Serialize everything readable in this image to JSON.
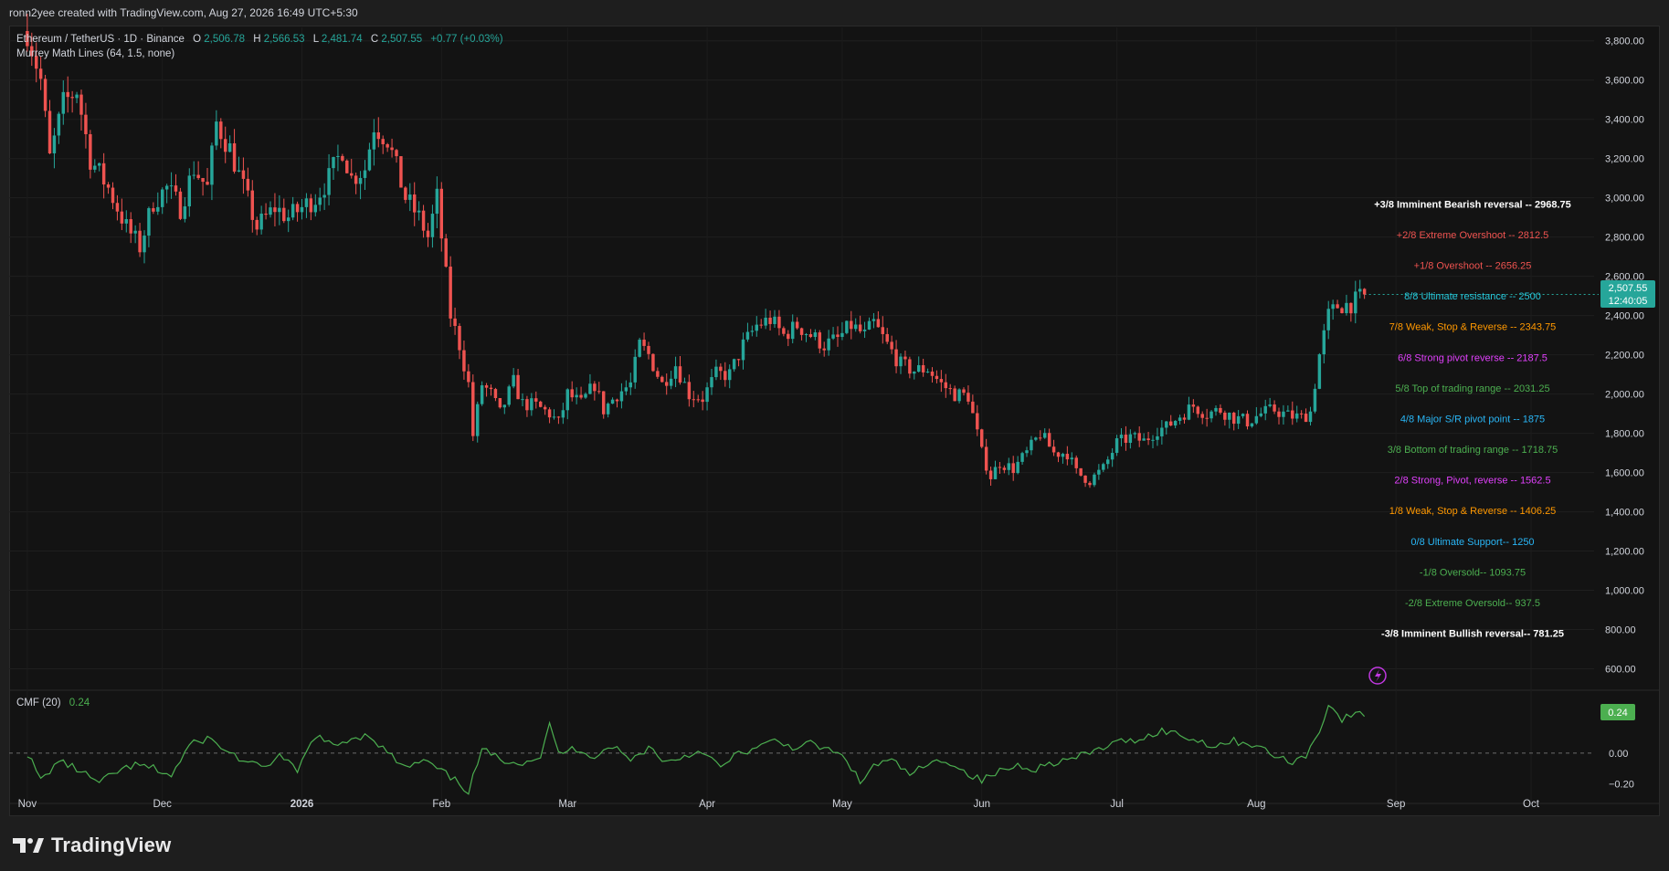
{
  "header": {
    "attribution": "ronn2yee created with TradingView.com, Aug 27, 2026 16:49 UTC+5:30"
  },
  "legend": {
    "symbol": "Ethereum / TetherUS · 1D · Binance",
    "o_label": "O",
    "o_value": "2,506.78",
    "h_label": "H",
    "h_value": "2,566.53",
    "l_label": "L",
    "l_value": "2,481.74",
    "c_label": "C",
    "c_value": "2,507.55",
    "change": "+0.77 (+0.03%)",
    "indicator": "Murrey Math Lines (64, 1.5, none)"
  },
  "cmf": {
    "label": "CMF (20)",
    "value": "0.24",
    "badge": "0.24"
  },
  "price_badge": {
    "price": "2,507.55",
    "countdown": "12:40:05"
  },
  "footer": {
    "brand": "TradingView"
  },
  "colors": {
    "up": "#26a69a",
    "down": "#ef5350",
    "cmf_line": "#4caf50",
    "background": "#131313"
  },
  "chart_data": {
    "type": "candlestick",
    "title": "Ethereum / TetherUS · 1D · Binance",
    "ylim": [
      500,
      3850
    ],
    "y_ticks": [
      3800,
      3600,
      3400,
      3200,
      3000,
      2800,
      2600,
      2400,
      2200,
      2000,
      1800,
      1600,
      1400,
      1200,
      1000,
      800,
      600
    ],
    "y_tick_labels": [
      "3,800.00",
      "3,600.00",
      "3,400.00",
      "3,200.00",
      "3,000.00",
      "2,800.00",
      "2,600.00",
      "2,400.00",
      "2,200.00",
      "2,000.00",
      "1,800.00",
      "1,600.00",
      "1,400.00",
      "1,200.00",
      "1,000.00",
      "800.00",
      "600.00"
    ],
    "x_labels": [
      "Nov",
      "Dec",
      "2026",
      "Feb",
      "Mar",
      "Apr",
      "May",
      "Jun",
      "Jul",
      "Aug",
      "Sep",
      "Oct"
    ],
    "x_label_days": [
      0,
      30,
      61,
      92,
      120,
      151,
      181,
      212,
      242,
      273,
      304,
      334
    ],
    "x_range_days": [
      -2,
      348
    ],
    "last_candle_day": 297,
    "close_path": [
      {
        "day": 0,
        "close": 3850
      },
      {
        "day": 3,
        "close": 3600
      },
      {
        "day": 5,
        "close": 3200
      },
      {
        "day": 8,
        "close": 3480
      },
      {
        "day": 11,
        "close": 3550
      },
      {
        "day": 14,
        "close": 3200
      },
      {
        "day": 18,
        "close": 3050
      },
      {
        "day": 22,
        "close": 2850
      },
      {
        "day": 25,
        "close": 2750
      },
      {
        "day": 28,
        "close": 2980
      },
      {
        "day": 31,
        "close": 3050
      },
      {
        "day": 34,
        "close": 2950
      },
      {
        "day": 37,
        "close": 3150
      },
      {
        "day": 40,
        "close": 3050
      },
      {
        "day": 42,
        "close": 3380
      },
      {
        "day": 45,
        "close": 3250
      },
      {
        "day": 48,
        "close": 3050
      },
      {
        "day": 51,
        "close": 2850
      },
      {
        "day": 55,
        "close": 2950
      },
      {
        "day": 58,
        "close": 2900
      },
      {
        "day": 61,
        "close": 2950
      },
      {
        "day": 64,
        "close": 3000
      },
      {
        "day": 67,
        "close": 3100
      },
      {
        "day": 70,
        "close": 3250
      },
      {
        "day": 72,
        "close": 3100
      },
      {
        "day": 75,
        "close": 3150
      },
      {
        "day": 77,
        "close": 3370
      },
      {
        "day": 80,
        "close": 3300
      },
      {
        "day": 82,
        "close": 3150
      },
      {
        "day": 84,
        "close": 3000
      },
      {
        "day": 87,
        "close": 2900
      },
      {
        "day": 89,
        "close": 2800
      },
      {
        "day": 91,
        "close": 3000
      },
      {
        "day": 92,
        "close": 2800
      },
      {
        "day": 94,
        "close": 2400
      },
      {
        "day": 96,
        "close": 2250
      },
      {
        "day": 98,
        "close": 2050
      },
      {
        "day": 99,
        "close": 1790
      },
      {
        "day": 101,
        "close": 2050
      },
      {
        "day": 103,
        "close": 2000
      },
      {
        "day": 105,
        "close": 1900
      },
      {
        "day": 108,
        "close": 2060
      },
      {
        "day": 110,
        "close": 1950
      },
      {
        "day": 113,
        "close": 1940
      },
      {
        "day": 116,
        "close": 1900
      },
      {
        "day": 118,
        "close": 1850
      },
      {
        "day": 120,
        "close": 2000
      },
      {
        "day": 123,
        "close": 1950
      },
      {
        "day": 126,
        "close": 2050
      },
      {
        "day": 128,
        "close": 1920
      },
      {
        "day": 131,
        "close": 2000
      },
      {
        "day": 134,
        "close": 2050
      },
      {
        "day": 136,
        "close": 2250
      },
      {
        "day": 138,
        "close": 2200
      },
      {
        "day": 141,
        "close": 2050
      },
      {
        "day": 144,
        "close": 2150
      },
      {
        "day": 147,
        "close": 2000
      },
      {
        "day": 150,
        "close": 1980
      },
      {
        "day": 153,
        "close": 2100
      },
      {
        "day": 156,
        "close": 2100
      },
      {
        "day": 159,
        "close": 2250
      },
      {
        "day": 162,
        "close": 2350
      },
      {
        "day": 165,
        "close": 2380
      },
      {
        "day": 168,
        "close": 2300
      },
      {
        "day": 171,
        "close": 2350
      },
      {
        "day": 174,
        "close": 2300
      },
      {
        "day": 177,
        "close": 2250
      },
      {
        "day": 180,
        "close": 2280
      },
      {
        "day": 183,
        "close": 2350
      },
      {
        "day": 186,
        "close": 2300
      },
      {
        "day": 188,
        "close": 2360
      },
      {
        "day": 191,
        "close": 2250
      },
      {
        "day": 194,
        "close": 2150
      },
      {
        "day": 197,
        "close": 2120
      },
      {
        "day": 200,
        "close": 2130
      },
      {
        "day": 203,
        "close": 2050
      },
      {
        "day": 206,
        "close": 2000
      },
      {
        "day": 209,
        "close": 1990
      },
      {
        "day": 212,
        "close": 1700
      },
      {
        "day": 214,
        "close": 1580
      },
      {
        "day": 216,
        "close": 1650
      },
      {
        "day": 219,
        "close": 1620
      },
      {
        "day": 222,
        "close": 1700
      },
      {
        "day": 225,
        "close": 1800
      },
      {
        "day": 228,
        "close": 1700
      },
      {
        "day": 231,
        "close": 1700
      },
      {
        "day": 233,
        "close": 1600
      },
      {
        "day": 236,
        "close": 1560
      },
      {
        "day": 239,
        "close": 1620
      },
      {
        "day": 242,
        "close": 1750
      },
      {
        "day": 245,
        "close": 1780
      },
      {
        "day": 248,
        "close": 1760
      },
      {
        "day": 251,
        "close": 1820
      },
      {
        "day": 253,
        "close": 1830
      },
      {
        "day": 256,
        "close": 1890
      },
      {
        "day": 259,
        "close": 1940
      },
      {
        "day": 262,
        "close": 1900
      },
      {
        "day": 265,
        "close": 1920
      },
      {
        "day": 268,
        "close": 1880
      },
      {
        "day": 271,
        "close": 1860
      },
      {
        "day": 274,
        "close": 1900
      },
      {
        "day": 277,
        "close": 1920
      },
      {
        "day": 280,
        "close": 1890
      },
      {
        "day": 283,
        "close": 1880
      },
      {
        "day": 285,
        "close": 1910
      },
      {
        "day": 287,
        "close": 2200
      },
      {
        "day": 289,
        "close": 2400
      },
      {
        "day": 291,
        "close": 2450
      },
      {
        "day": 294,
        "close": 2460
      },
      {
        "day": 297,
        "close": 2507.55
      }
    ],
    "murrey_levels": [
      {
        "label": "+3/8 Imminent Bearish reversal --  2968.75",
        "value": 2968.75,
        "color": "#ffffff"
      },
      {
        "label": "+2/8 Extreme Overshoot --  2812.5",
        "value": 2812.5,
        "color": "#ef5350"
      },
      {
        "label": "+1/8 Overshoot --  2656.25",
        "value": 2656.25,
        "color": "#ef5350"
      },
      {
        "label": "8/8 Ultimate resistance --  2500",
        "value": 2500,
        "color": "#26c6da"
      },
      {
        "label": "7/8 Weak, Stop & Reverse --  2343.75",
        "value": 2343.75,
        "color": "#ff9800"
      },
      {
        "label": "6/8 Strong pivot reverse --  2187.5",
        "value": 2187.5,
        "color": "#e040fb"
      },
      {
        "label": "5/8 Top of trading range --  2031.25",
        "value": 2031.25,
        "color": "#4caf50"
      },
      {
        "label": "4/8 Major S/R pivot point --  1875",
        "value": 1875,
        "color": "#29b6f6"
      },
      {
        "label": "3/8 Bottom of trading range --  1718.75",
        "value": 1718.75,
        "color": "#4caf50"
      },
      {
        "label": "2/8 Strong, Pivot, reverse --  1562.5",
        "value": 1562.5,
        "color": "#e040fb"
      },
      {
        "label": "1/8 Weak, Stop & Reverse --  1406.25",
        "value": 1406.25,
        "color": "#ff9800"
      },
      {
        "label": "0/8 Ultimate Support--  1250",
        "value": 1250,
        "color": "#29b6f6"
      },
      {
        "label": "-1/8 Oversold--  1093.75",
        "value": 1093.75,
        "color": "#4caf50"
      },
      {
        "label": "-2/8 Extreme Oversold--  937.5",
        "value": 937.5,
        "color": "#4caf50"
      },
      {
        "label": "-3/8 Imminent Bullish reversal--  781.25",
        "value": 781.25,
        "color": "#ffffff"
      }
    ],
    "cmf_indicator": {
      "ylim": [
        -0.3,
        0.4
      ],
      "y_ticks": [
        0.0,
        -0.2
      ],
      "y_tick_labels": [
        "0.00",
        "−0.20"
      ],
      "path": [
        {
          "day": 0,
          "value": 0.0
        },
        {
          "day": 3,
          "value": -0.18
        },
        {
          "day": 7,
          "value": -0.05
        },
        {
          "day": 12,
          "value": -0.12
        },
        {
          "day": 16,
          "value": -0.2
        },
        {
          "day": 20,
          "value": -0.12
        },
        {
          "day": 24,
          "value": -0.08
        },
        {
          "day": 28,
          "value": -0.1
        },
        {
          "day": 32,
          "value": -0.15
        },
        {
          "day": 36,
          "value": 0.05
        },
        {
          "day": 40,
          "value": 0.1
        },
        {
          "day": 44,
          "value": 0.02
        },
        {
          "day": 48,
          "value": -0.05
        },
        {
          "day": 52,
          "value": -0.1
        },
        {
          "day": 56,
          "value": -0.02
        },
        {
          "day": 60,
          "value": -0.12
        },
        {
          "day": 64,
          "value": 0.12
        },
        {
          "day": 68,
          "value": 0.04
        },
        {
          "day": 72,
          "value": 0.1
        },
        {
          "day": 76,
          "value": 0.12
        },
        {
          "day": 80,
          "value": 0.0
        },
        {
          "day": 84,
          "value": -0.1
        },
        {
          "day": 88,
          "value": -0.05
        },
        {
          "day": 92,
          "value": -0.12
        },
        {
          "day": 96,
          "value": -0.2
        },
        {
          "day": 98,
          "value": -0.25
        },
        {
          "day": 101,
          "value": 0.02
        },
        {
          "day": 105,
          "value": -0.04
        },
        {
          "day": 110,
          "value": -0.06
        },
        {
          "day": 114,
          "value": -0.02
        },
        {
          "day": 116,
          "value": 0.18
        },
        {
          "day": 118,
          "value": 0.0
        },
        {
          "day": 122,
          "value": 0.03
        },
        {
          "day": 126,
          "value": -0.02
        },
        {
          "day": 130,
          "value": 0.05
        },
        {
          "day": 134,
          "value": -0.05
        },
        {
          "day": 138,
          "value": 0.04
        },
        {
          "day": 142,
          "value": -0.06
        },
        {
          "day": 146,
          "value": -0.02
        },
        {
          "day": 150,
          "value": 0.02
        },
        {
          "day": 154,
          "value": -0.1
        },
        {
          "day": 158,
          "value": 0.0
        },
        {
          "day": 162,
          "value": 0.03
        },
        {
          "day": 166,
          "value": 0.08
        },
        {
          "day": 170,
          "value": 0.04
        },
        {
          "day": 174,
          "value": 0.06
        },
        {
          "day": 178,
          "value": 0.02
        },
        {
          "day": 182,
          "value": -0.04
        },
        {
          "day": 185,
          "value": -0.2
        },
        {
          "day": 188,
          "value": -0.08
        },
        {
          "day": 192,
          "value": -0.05
        },
        {
          "day": 196,
          "value": -0.14
        },
        {
          "day": 200,
          "value": -0.08
        },
        {
          "day": 204,
          "value": -0.04
        },
        {
          "day": 208,
          "value": -0.12
        },
        {
          "day": 212,
          "value": -0.18
        },
        {
          "day": 216,
          "value": -0.12
        },
        {
          "day": 220,
          "value": -0.08
        },
        {
          "day": 224,
          "value": -0.1
        },
        {
          "day": 228,
          "value": -0.06
        },
        {
          "day": 232,
          "value": -0.04
        },
        {
          "day": 236,
          "value": 0.0
        },
        {
          "day": 240,
          "value": 0.05
        },
        {
          "day": 244,
          "value": 0.08
        },
        {
          "day": 248,
          "value": 0.1
        },
        {
          "day": 252,
          "value": 0.15
        },
        {
          "day": 256,
          "value": 0.12
        },
        {
          "day": 260,
          "value": 0.08
        },
        {
          "day": 264,
          "value": 0.05
        },
        {
          "day": 268,
          "value": 0.08
        },
        {
          "day": 272,
          "value": 0.06
        },
        {
          "day": 276,
          "value": 0.0
        },
        {
          "day": 280,
          "value": -0.06
        },
        {
          "day": 284,
          "value": -0.02
        },
        {
          "day": 287,
          "value": 0.15
        },
        {
          "day": 289,
          "value": 0.32
        },
        {
          "day": 292,
          "value": 0.22
        },
        {
          "day": 295,
          "value": 0.26
        },
        {
          "day": 297,
          "value": 0.24
        }
      ]
    }
  }
}
